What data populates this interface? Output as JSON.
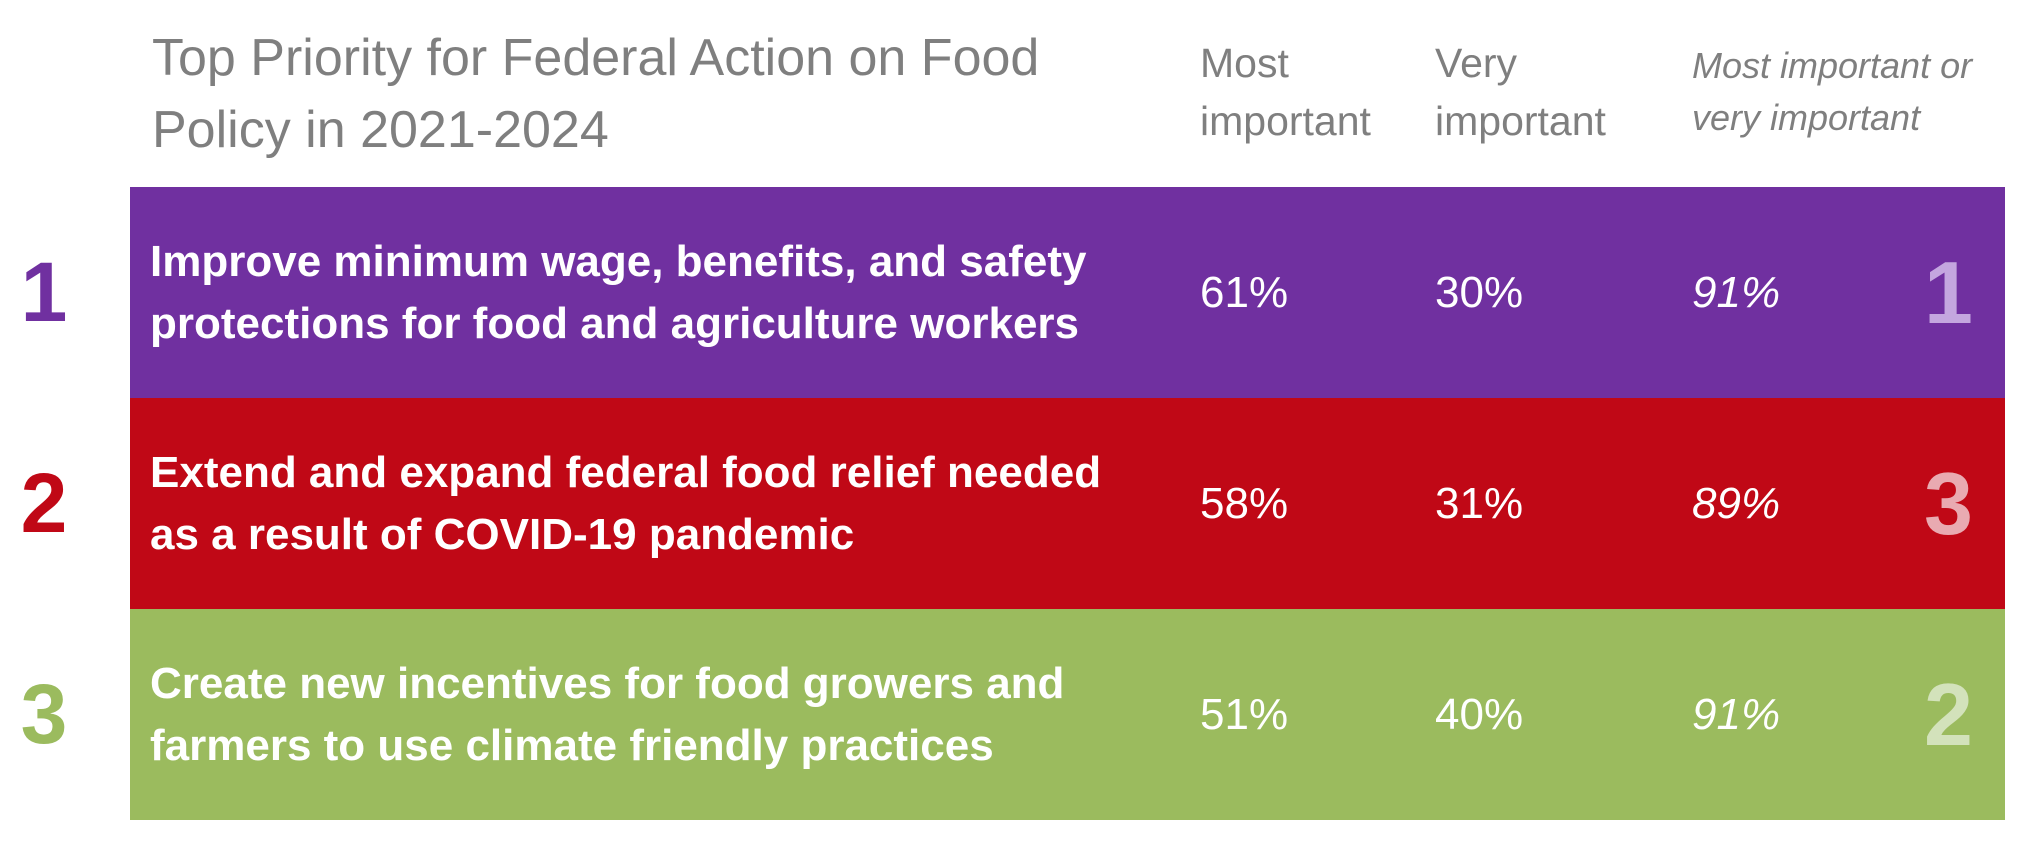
{
  "chart_data": {
    "type": "table",
    "title": "Top Priority for Federal Action on Food\nPolicy in 2021-2024",
    "columns": [
      {
        "label": "Most\nimportant",
        "style": "normal"
      },
      {
        "label": "Very\nimportant",
        "style": "normal"
      },
      {
        "label": "Most important or\nvery important",
        "style": "italic"
      }
    ],
    "rows": [
      {
        "number": "1",
        "label": "Improve minimum wage, benefits, and safety protections for food and agriculture workers",
        "most_important": "61%",
        "very_important": "30%",
        "most_or_very": "91%",
        "rank": "1",
        "color": "#7030a0",
        "rank_color": "#c4a6df"
      },
      {
        "number": "2",
        "label": "Extend and expand federal food relief needed as a result of COVID-19 pandemic",
        "most_important": "58%",
        "very_important": "31%",
        "most_or_very": "89%",
        "rank": "3",
        "color": "#c00816",
        "rank_color": "#e9aab1"
      },
      {
        "number": "3",
        "label": "Create new incentives for food growers and farmers to use climate friendly practices",
        "most_important": "51%",
        "very_important": "40%",
        "most_or_very": "91%",
        "rank": "2",
        "color": "#9bbb5e",
        "rank_color": "#d3e2bb"
      }
    ]
  }
}
